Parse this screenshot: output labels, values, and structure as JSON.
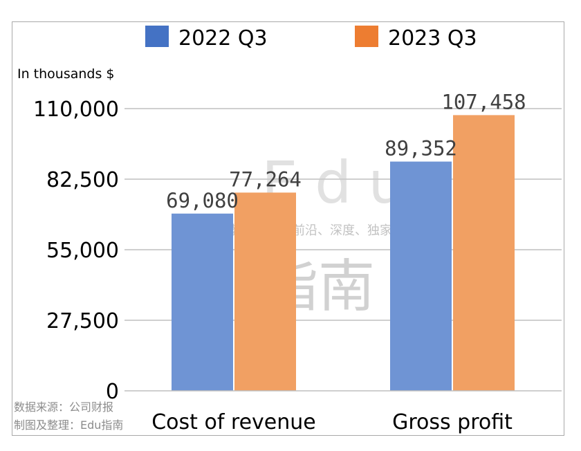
{
  "chart_data": {
    "type": "bar",
    "categories": [
      "Cost of revenue",
      "Gross profit"
    ],
    "series": [
      {
        "name": "2022 Q3",
        "color": "#6f94d4",
        "legend_color": "#4472c4",
        "values": [
          69080,
          89352
        ],
        "labels": [
          "69,080",
          "89,352"
        ]
      },
      {
        "name": "2023 Q3",
        "color": "#f1a063",
        "legend_color": "#ed7d31",
        "values": [
          77264,
          107458
        ],
        "labels": [
          "77,264",
          "107,458"
        ]
      }
    ],
    "unit_label": "In thousands $",
    "ylim": [
      0,
      110000
    ],
    "yticks": [
      0,
      27500,
      55000,
      82500,
      110000
    ],
    "ytick_labels": [
      "0",
      "27,500",
      "55,000",
      "82,500",
      "110,000"
    ],
    "grid": true,
    "legend_position": "top"
  },
  "watermark": {
    "brand": "Edu",
    "brand_cn": "指南",
    "slogan": "教育行业，前沿、深度、独家"
  },
  "source": {
    "line1": "数据来源：公司财报",
    "line2": "制图及整理：Edu指南"
  }
}
